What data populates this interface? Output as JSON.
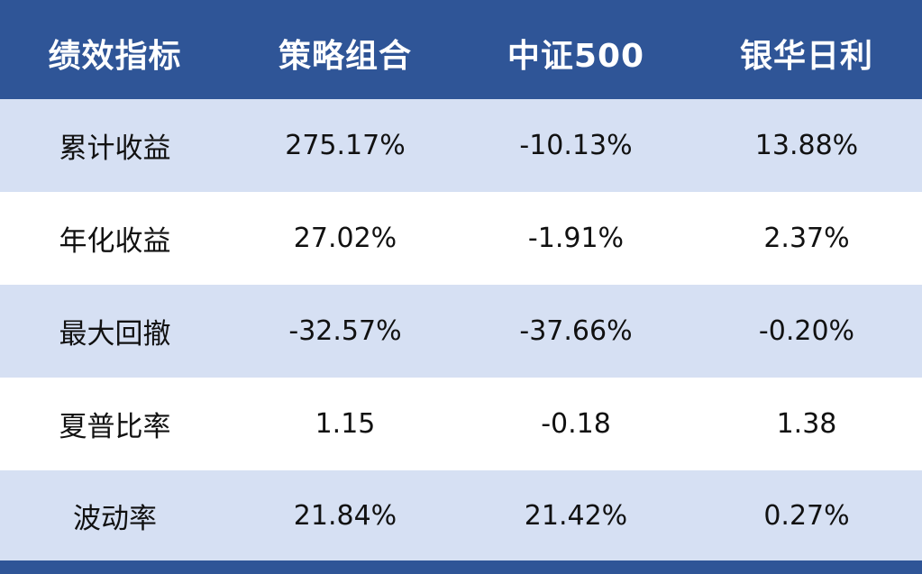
{
  "chart_data": {
    "type": "table",
    "columns": [
      "绩效指标",
      "策略组合",
      "中证500",
      "银华日利"
    ],
    "rows": [
      {
        "metric": "累计收益",
        "values": [
          "275.17%",
          "-10.13%",
          "13.88%"
        ]
      },
      {
        "metric": "年化收益",
        "values": [
          "27.02%",
          "-1.91%",
          "2.37%"
        ]
      },
      {
        "metric": "最大回撤",
        "values": [
          "-32.57%",
          "-37.66%",
          "-0.20%"
        ]
      },
      {
        "metric": "夏普比率",
        "values": [
          "1.15",
          "-0.18",
          "1.38"
        ]
      },
      {
        "metric": "波动率",
        "values": [
          "21.84%",
          "21.42%",
          "0.27%"
        ]
      }
    ]
  },
  "colors": {
    "header_bg": "#2f5597",
    "header_text": "#ffffff",
    "shaded_row": "#d6e0f3",
    "plain_row": "#ffffff",
    "cell_text": "#111111"
  }
}
